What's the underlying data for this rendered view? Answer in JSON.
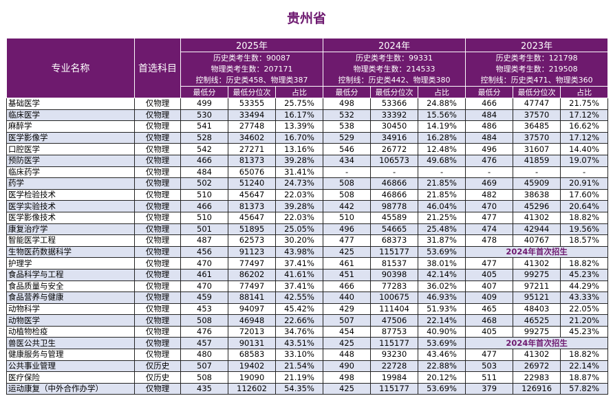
{
  "title": "贵州省",
  "header": {
    "major": "专业名称",
    "subject": "首选科目",
    "sub_cols": [
      "最低分",
      "最低分位次",
      "占比"
    ],
    "years": [
      {
        "year": "2025年",
        "hist": "历史类考生数：90087",
        "phys": "物理类考生数：207171",
        "ctrl": "控制线：历史类458、物理类387"
      },
      {
        "year": "2024年",
        "hist": "历史类考生数：99331",
        "phys": "物理类考生数：214533",
        "ctrl": "控制线：历史类442、物理类380"
      },
      {
        "year": "2023年",
        "hist": "历史类考生数：121798",
        "phys": "物理类考生数：219508",
        "ctrl": "控制线：历史类471、物理类360"
      }
    ]
  },
  "first_enroll_label": "2024年首次招生",
  "rows": [
    {
      "name": "基础医学",
      "subject": "仅物理",
      "y25": [
        "499",
        "53355",
        "25.75%"
      ],
      "y24": [
        "498",
        "53366",
        "24.88%"
      ],
      "y23": [
        "466",
        "47747",
        "21.75%"
      ]
    },
    {
      "name": "临床医学",
      "subject": "仅物理",
      "y25": [
        "530",
        "33494",
        "16.17%"
      ],
      "y24": [
        "532",
        "33392",
        "15.56%"
      ],
      "y23": [
        "484",
        "37570",
        "17.12%"
      ]
    },
    {
      "name": "麻醉学",
      "subject": "仅物理",
      "y25": [
        "541",
        "27748",
        "13.39%"
      ],
      "y24": [
        "538",
        "30450",
        "14.19%"
      ],
      "y23": [
        "486",
        "36485",
        "16.62%"
      ]
    },
    {
      "name": "医学影像学",
      "subject": "仅物理",
      "y25": [
        "528",
        "34602",
        "16.70%"
      ],
      "y24": [
        "529",
        "34916",
        "16.28%"
      ],
      "y23": [
        "484",
        "37570",
        "17.12%"
      ]
    },
    {
      "name": "口腔医学",
      "subject": "仅物理",
      "y25": [
        "542",
        "27271",
        "13.16%"
      ],
      "y24": [
        "546",
        "26772",
        "12.48%"
      ],
      "y23": [
        "496",
        "31607",
        "14.40%"
      ]
    },
    {
      "name": "预防医学",
      "subject": "仅物理",
      "y25": [
        "466",
        "81373",
        "39.28%"
      ],
      "y24": [
        "434",
        "106573",
        "49.68%"
      ],
      "y23": [
        "476",
        "41859",
        "19.07%"
      ]
    },
    {
      "name": "临床药学",
      "subject": "仅物理",
      "y25": [
        "484",
        "65076",
        "31.41%"
      ],
      "y24": [
        "-",
        "-",
        "-"
      ],
      "y23": [
        "-",
        "-",
        "-"
      ]
    },
    {
      "name": "药学",
      "subject": "仅物理",
      "y25": [
        "502",
        "51240",
        "24.73%"
      ],
      "y24": [
        "508",
        "46866",
        "21.85%"
      ],
      "y23": [
        "469",
        "45909",
        "20.91%"
      ]
    },
    {
      "name": "医学检验技术",
      "subject": "仅物理",
      "y25": [
        "510",
        "45647",
        "22.03%"
      ],
      "y24": [
        "508",
        "46866",
        "21.85%"
      ],
      "y23": [
        "482",
        "38638",
        "17.60%"
      ]
    },
    {
      "name": "医学实验技术",
      "subject": "仅物理",
      "y25": [
        "466",
        "81373",
        "39.28%"
      ],
      "y24": [
        "442",
        "98778",
        "46.04%"
      ],
      "y23": [
        "470",
        "45296",
        "20.64%"
      ]
    },
    {
      "name": "医学影像技术",
      "subject": "仅物理",
      "y25": [
        "510",
        "45647",
        "22.03%"
      ],
      "y24": [
        "510",
        "45589",
        "21.25%"
      ],
      "y23": [
        "477",
        "41302",
        "18.82%"
      ]
    },
    {
      "name": "康复治疗学",
      "subject": "仅物理",
      "y25": [
        "501",
        "51895",
        "25.05%"
      ],
      "y24": [
        "496",
        "54665",
        "25.48%"
      ],
      "y23": [
        "474",
        "42944",
        "19.56%"
      ]
    },
    {
      "name": "智能医学工程",
      "subject": "仅物理",
      "y25": [
        "487",
        "62573",
        "30.20%"
      ],
      "y24": [
        "477",
        "68373",
        "31.87%"
      ],
      "y23": [
        "478",
        "40767",
        "18.57%"
      ]
    },
    {
      "name": "生物医药数据科学",
      "subject": "仅物理",
      "y25": [
        "456",
        "91123",
        "43.98%"
      ],
      "y24": [
        "425",
        "115177",
        "53.69%"
      ],
      "y23": null
    },
    {
      "name": "护理学",
      "subject": "仅物理",
      "y25": [
        "470",
        "77497",
        "37.41%"
      ],
      "y24": [
        "461",
        "81537",
        "38.01%"
      ],
      "y23": [
        "477",
        "41302",
        "18.82%"
      ]
    },
    {
      "name": "食品科学与工程",
      "subject": "仅物理",
      "y25": [
        "461",
        "86202",
        "41.61%"
      ],
      "y24": [
        "451",
        "90398",
        "42.14%"
      ],
      "y23": [
        "405",
        "99275",
        "45.23%"
      ]
    },
    {
      "name": "食品质量与安全",
      "subject": "仅物理",
      "y25": [
        "470",
        "77497",
        "37.41%"
      ],
      "y24": [
        "466",
        "77283",
        "36.02%"
      ],
      "y23": [
        "407",
        "97211",
        "44.29%"
      ]
    },
    {
      "name": "食品营养与健康",
      "subject": "仅物理",
      "y25": [
        "459",
        "88141",
        "42.55%"
      ],
      "y24": [
        "440",
        "100675",
        "46.93%"
      ],
      "y23": [
        "409",
        "95121",
        "43.33%"
      ]
    },
    {
      "name": "动物科学",
      "subject": "仅物理",
      "y25": [
        "453",
        "94097",
        "45.42%"
      ],
      "y24": [
        "429",
        "111404",
        "51.93%"
      ],
      "y23": [
        "465",
        "48403",
        "22.05%"
      ]
    },
    {
      "name": "动物医学",
      "subject": "仅物理",
      "y25": [
        "508",
        "46948",
        "22.66%"
      ],
      "y24": [
        "507",
        "47506",
        "22.14%"
      ],
      "y23": [
        "468",
        "46525",
        "21.20%"
      ]
    },
    {
      "name": "动植物检疫",
      "subject": "仅物理",
      "y25": [
        "476",
        "72013",
        "34.76%"
      ],
      "y24": [
        "454",
        "87753",
        "40.90%"
      ],
      "y23": [
        "405",
        "99275",
        "45.23%"
      ]
    },
    {
      "name": "兽医公共卫生",
      "subject": "仅物理",
      "y25": [
        "457",
        "90131",
        "43.51%"
      ],
      "y24": [
        "425",
        "115177",
        "53.69%"
      ],
      "y23": null
    },
    {
      "name": "健康服务与管理",
      "subject": "仅物理",
      "y25": [
        "480",
        "68583",
        "33.10%"
      ],
      "y24": [
        "448",
        "93230",
        "43.46%"
      ],
      "y23": [
        "477",
        "41302",
        "18.82%"
      ]
    },
    {
      "name": "公共事业管理",
      "subject": "仅历史",
      "y25": [
        "507",
        "19402",
        "21.54%"
      ],
      "y24": [
        "490",
        "22728",
        "22.88%"
      ],
      "y23": [
        "503",
        "26972",
        "22.14%"
      ]
    },
    {
      "name": "医疗保险",
      "subject": "仅历史",
      "y25": [
        "508",
        "19090",
        "21.19%"
      ],
      "y24": [
        "498",
        "19984",
        "20.12%"
      ],
      "y23": [
        "511",
        "22983",
        "18.87%"
      ]
    },
    {
      "name": "运动康复（中外合作办学）",
      "subject": "仅物理",
      "y25": [
        "435",
        "112602",
        "54.35%"
      ],
      "y24": [
        "425",
        "115177",
        "53.69%"
      ],
      "y23": [
        "379",
        "126916",
        "57.82%"
      ]
    }
  ]
}
